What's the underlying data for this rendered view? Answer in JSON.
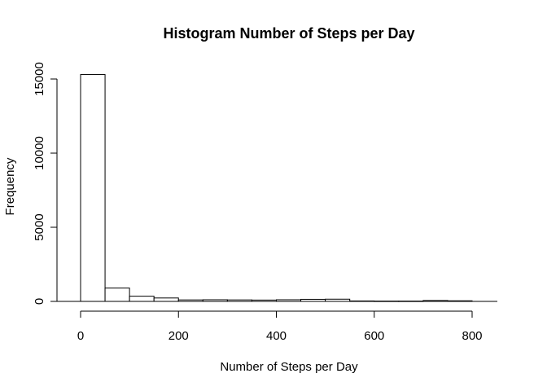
{
  "chart_data": {
    "type": "bar",
    "title": "Histogram Number of Steps per Day",
    "xlabel": "Number of Steps per Day",
    "ylabel": "Frequency",
    "bins": [
      {
        "start": 0,
        "end": 50,
        "count": 15300
      },
      {
        "start": 50,
        "end": 100,
        "count": 900
      },
      {
        "start": 100,
        "end": 150,
        "count": 350
      },
      {
        "start": 150,
        "end": 200,
        "count": 230
      },
      {
        "start": 200,
        "end": 250,
        "count": 100
      },
      {
        "start": 250,
        "end": 300,
        "count": 110
      },
      {
        "start": 300,
        "end": 350,
        "count": 100
      },
      {
        "start": 350,
        "end": 400,
        "count": 90
      },
      {
        "start": 400,
        "end": 450,
        "count": 110
      },
      {
        "start": 450,
        "end": 500,
        "count": 140
      },
      {
        "start": 500,
        "end": 550,
        "count": 150
      },
      {
        "start": 550,
        "end": 600,
        "count": 30
      },
      {
        "start": 600,
        "end": 650,
        "count": 20
      },
      {
        "start": 650,
        "end": 700,
        "count": 20
      },
      {
        "start": 700,
        "end": 750,
        "count": 60
      },
      {
        "start": 750,
        "end": 800,
        "count": 40
      }
    ],
    "xlim": [
      0,
      850
    ],
    "ylim": [
      0,
      16500
    ],
    "xticks": [
      0,
      200,
      400,
      600,
      800
    ],
    "yticks": [
      0,
      5000,
      10000,
      15000
    ],
    "grid": false,
    "legend": false
  }
}
